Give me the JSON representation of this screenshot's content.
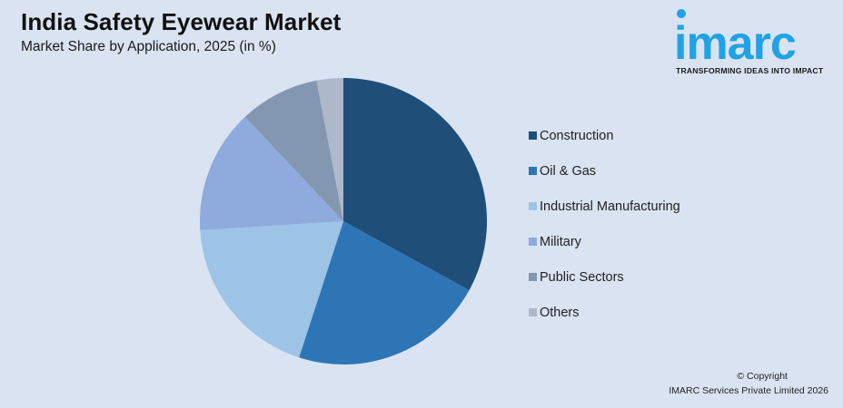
{
  "header": {
    "title": "India Safety Eyewear Market",
    "subtitle": "Market Share by Application, 2025 (in %)"
  },
  "logo": {
    "wordmark": "imarc",
    "tagline": "TRANSFORMING IDEAS INTO IMPACT",
    "color": "#1fa2e6"
  },
  "footer": {
    "copyright_line1": "© Copyright",
    "copyright_line2": "IMARC Services Private Limited 2026"
  },
  "legend": {
    "items": [
      {
        "label": "Construction",
        "color": "#1f4e79"
      },
      {
        "label": "Oil & Gas",
        "color": "#2e75b6"
      },
      {
        "label": "Industrial Manufacturing",
        "color": "#9dc3e6"
      },
      {
        "label": "Military",
        "color": "#8faadc"
      },
      {
        "label": "Public Sectors",
        "color": "#8497b0"
      },
      {
        "label": "Others",
        "color": "#adb9ca"
      }
    ]
  },
  "chart_data": {
    "type": "pie",
    "title": "India Safety Eyewear Market",
    "subtitle": "Market Share by Application, 2025 (in %)",
    "categories": [
      "Construction",
      "Oil & Gas",
      "Industrial Manufacturing",
      "Military",
      "Public Sectors",
      "Others"
    ],
    "values": [
      33,
      22,
      19,
      14,
      9,
      3
    ],
    "colors": [
      "#1f4e79",
      "#2e75b6",
      "#9dc3e6",
      "#8faadc",
      "#8497b0",
      "#adb9ca"
    ],
    "start_angle": "12 o'clock",
    "direction": "clockwise",
    "legend_position": "right",
    "data_labels": false
  }
}
